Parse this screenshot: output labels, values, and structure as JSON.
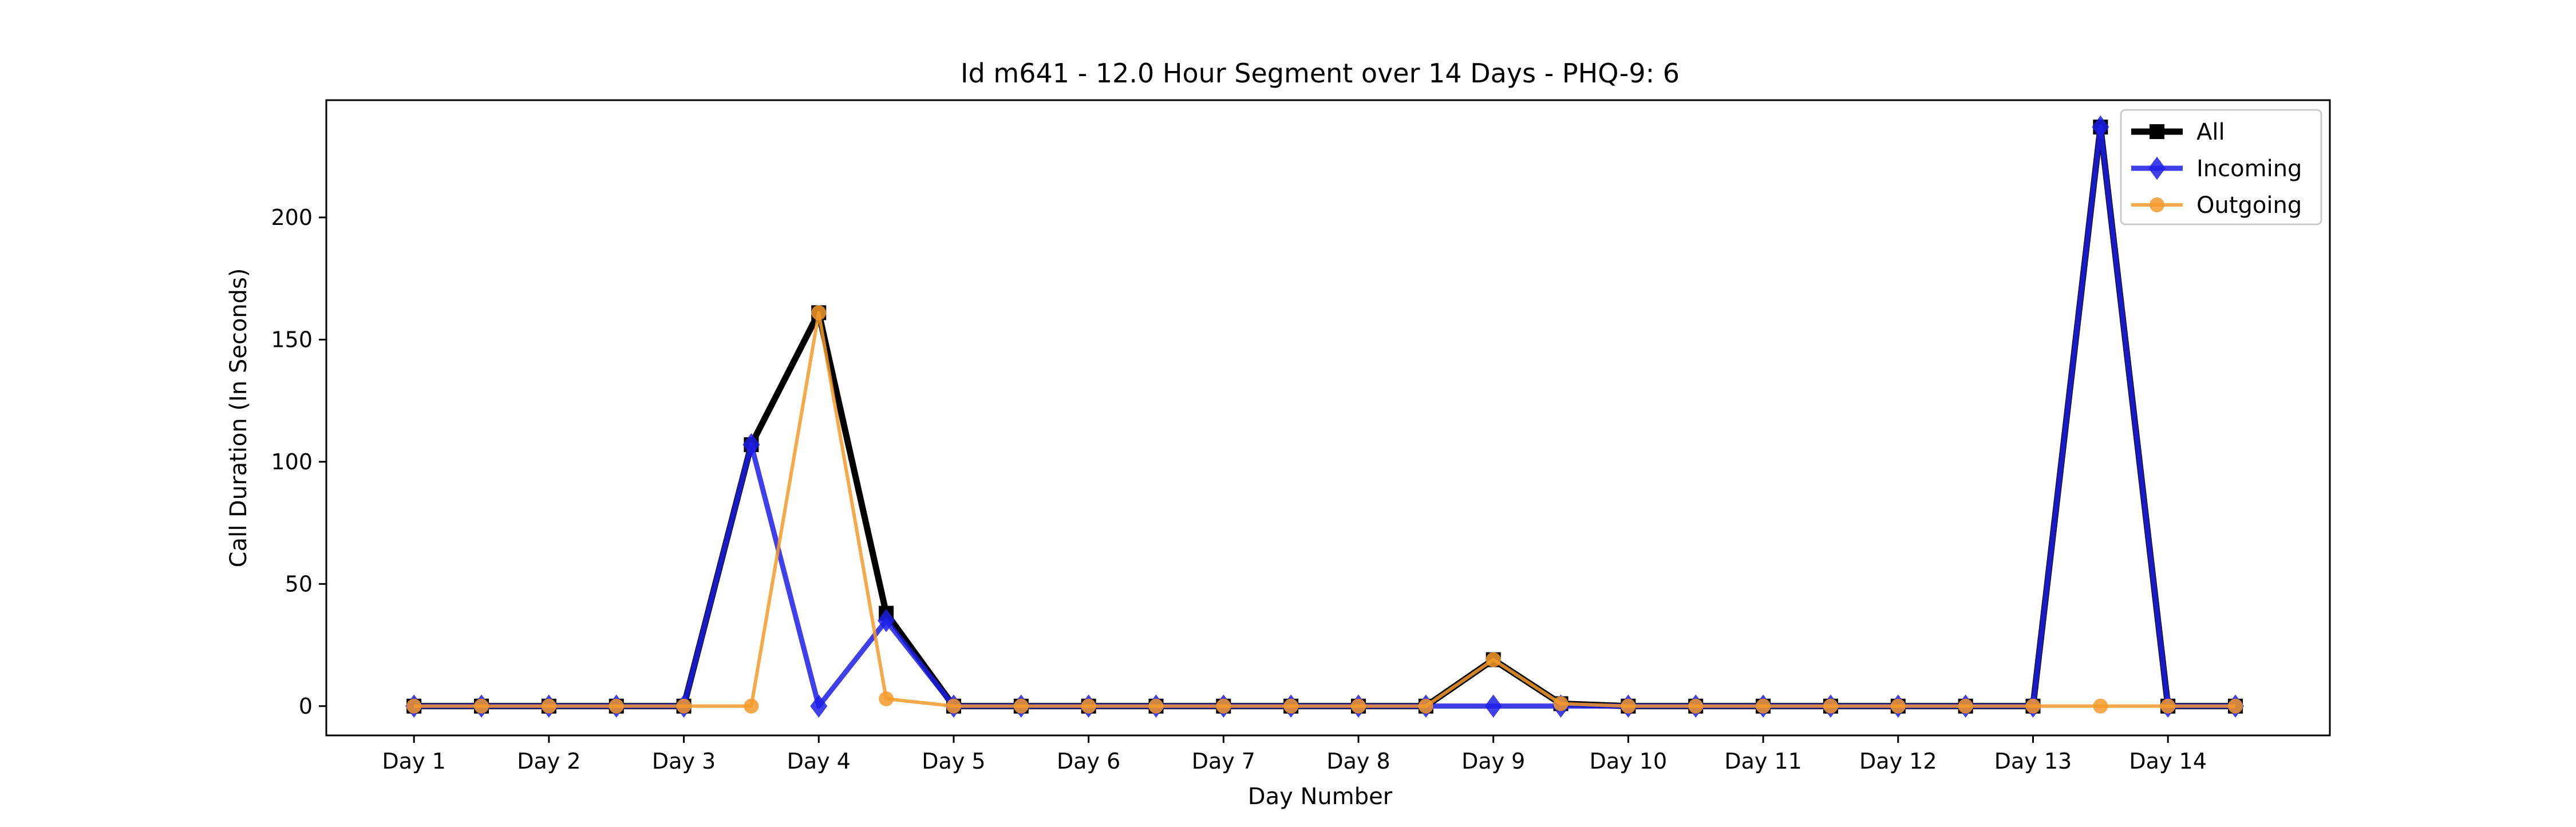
{
  "chart_data": {
    "type": "line",
    "title": "Id m641 - 12.0 Hour Segment over 14 Days - PHQ-9: 6",
    "xlabel": "Day Number",
    "ylabel": "Call Duration (In Seconds)",
    "x_tick_labels": [
      "Day 1",
      "Day 2",
      "Day 3",
      "Day 4",
      "Day 5",
      "Day 6",
      "Day 7",
      "Day 8",
      "Day 9",
      "Day 10",
      "Day 11",
      "Day 12",
      "Day 13",
      "Day 14"
    ],
    "y_tick_labels": [
      "0",
      "50",
      "100",
      "150",
      "200"
    ],
    "y_ticks": [
      0,
      50,
      100,
      150,
      200
    ],
    "ylim": [
      -12,
      248
    ],
    "x": [
      1,
      1.5,
      2,
      2.5,
      3,
      3.5,
      4,
      4.5,
      5,
      5.5,
      6,
      6.5,
      7,
      7.5,
      8,
      8.5,
      9,
      9.5,
      10,
      10.5,
      11,
      11.5,
      12,
      12.5,
      13,
      13.5,
      14,
      14.5
    ],
    "xlim": [
      0.35,
      15.2
    ],
    "grid": false,
    "legend_position": "top-right",
    "series": [
      {
        "name": "All",
        "color": "#000000",
        "marker": "square",
        "values": [
          0,
          0,
          0,
          0,
          0,
          107,
          161,
          38,
          0,
          0,
          0,
          0,
          0,
          0,
          0,
          0,
          19,
          1,
          0,
          0,
          0,
          0,
          0,
          0,
          0,
          237,
          0,
          0
        ]
      },
      {
        "name": "Incoming",
        "color": "#1f1fe6",
        "marker": "diamond",
        "values": [
          0,
          0,
          0,
          0,
          0,
          107,
          0,
          35,
          0,
          0,
          0,
          0,
          0,
          0,
          0,
          0,
          0,
          0,
          0,
          0,
          0,
          0,
          0,
          0,
          0,
          237,
          0,
          0
        ]
      },
      {
        "name": "Outgoing",
        "color": "#f59a2a",
        "marker": "circle",
        "values": [
          0,
          0,
          0,
          0,
          0,
          0,
          161,
          3,
          0,
          0,
          0,
          0,
          0,
          0,
          0,
          0,
          19,
          1,
          0,
          0,
          0,
          0,
          0,
          0,
          0,
          0,
          0,
          0
        ]
      }
    ]
  }
}
